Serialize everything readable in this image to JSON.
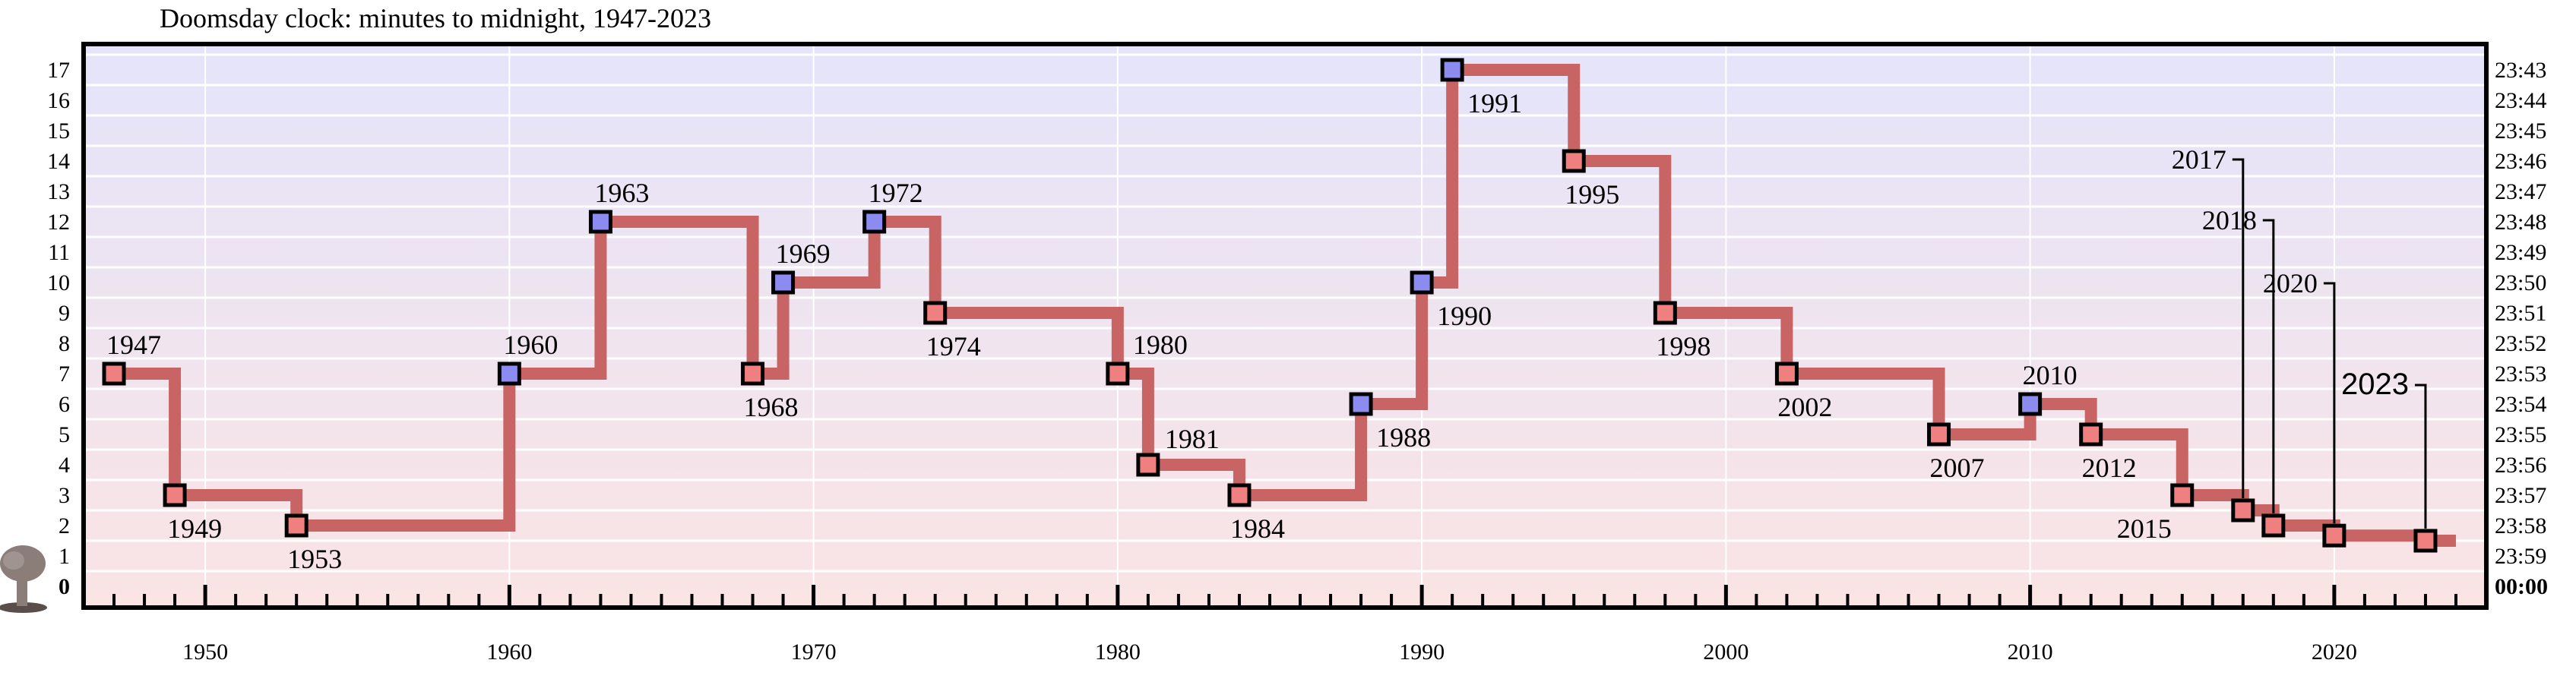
{
  "chart_data": {
    "type": "line",
    "title": "Doomsday clock: minutes to midnight, 1947-2023",
    "xlabel": "",
    "ylabel": "",
    "xlim": [
      1946,
      2025
    ],
    "ylim": [
      0,
      17
    ],
    "step": "post",
    "grid": true,
    "x_ticks": [
      1950,
      1960,
      1970,
      1980,
      1990,
      2000,
      2010,
      2020
    ],
    "y_ticks_left": [
      "0",
      "1",
      "2",
      "3",
      "4",
      "5",
      "6",
      "7",
      "8",
      "9",
      "10",
      "11",
      "12",
      "13",
      "14",
      "15",
      "16",
      "17"
    ],
    "y_ticks_right": [
      "00:00",
      "23:59",
      "23:58",
      "23:57",
      "23:56",
      "23:55",
      "23:54",
      "23:53",
      "23:52",
      "23:51",
      "23:50",
      "23:49",
      "23:48",
      "23:47",
      "23:46",
      "23:45",
      "23:44",
      "23:43"
    ],
    "colors": {
      "line": "#c86464",
      "closer_marker": "#f08080",
      "further_marker": "#8c8cf0",
      "band_top": "#e4e4fa",
      "band_bottom": "#fae4e4",
      "midnight_label": "#e82020"
    },
    "series": [
      {
        "points": [
          {
            "year": 1947,
            "minutes": 7,
            "label": "1947"
          },
          {
            "year": 1949,
            "minutes": 3,
            "label": "1949"
          },
          {
            "year": 1953,
            "minutes": 2,
            "label": "1953"
          },
          {
            "year": 1960,
            "minutes": 7,
            "label": "1960"
          },
          {
            "year": 1963,
            "minutes": 12,
            "label": "1963"
          },
          {
            "year": 1968,
            "minutes": 7,
            "label": "1968"
          },
          {
            "year": 1969,
            "minutes": 10,
            "label": "1969"
          },
          {
            "year": 1972,
            "minutes": 12,
            "label": "1972"
          },
          {
            "year": 1974,
            "minutes": 9,
            "label": "1974"
          },
          {
            "year": 1980,
            "minutes": 7,
            "label": "1980"
          },
          {
            "year": 1981,
            "minutes": 4,
            "label": "1981"
          },
          {
            "year": 1984,
            "minutes": 3,
            "label": "1984"
          },
          {
            "year": 1988,
            "minutes": 6,
            "label": "1988"
          },
          {
            "year": 1990,
            "minutes": 10,
            "label": "1990"
          },
          {
            "year": 1991,
            "minutes": 17,
            "label": "1991"
          },
          {
            "year": 1995,
            "minutes": 14,
            "label": "1995"
          },
          {
            "year": 1998,
            "minutes": 9,
            "label": "1998"
          },
          {
            "year": 2002,
            "minutes": 7,
            "label": "2002"
          },
          {
            "year": 2007,
            "minutes": 5,
            "label": "2007"
          },
          {
            "year": 2010,
            "minutes": 6,
            "label": "2010"
          },
          {
            "year": 2012,
            "minutes": 5,
            "label": "2012"
          },
          {
            "year": 2015,
            "minutes": 3,
            "label": "2015"
          },
          {
            "year": 2017,
            "minutes": 2.5,
            "label": "2017"
          },
          {
            "year": 2018,
            "minutes": 2,
            "label": "2018"
          },
          {
            "year": 2020,
            "minutes": 1.67,
            "label": "2020"
          },
          {
            "year": 2023,
            "minutes": 1.5,
            "label": "2023"
          }
        ],
        "end_year": 2024
      }
    ],
    "legend": "none"
  }
}
